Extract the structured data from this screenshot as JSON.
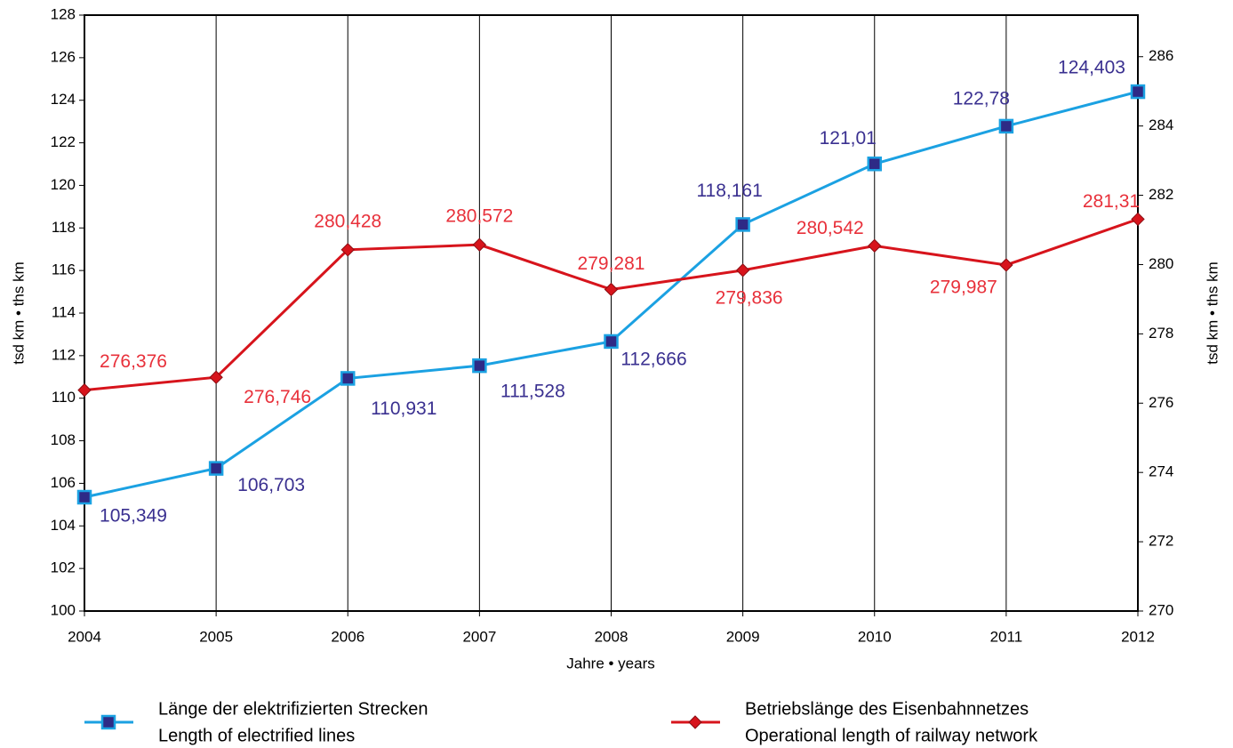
{
  "chart_data": {
    "type": "line",
    "x": [
      2004,
      2005,
      2006,
      2007,
      2008,
      2009,
      2010,
      2011,
      2012
    ],
    "xlim": [
      2004,
      2012
    ],
    "xticks": [
      2004,
      2005,
      2006,
      2007,
      2008,
      2009,
      2010,
      2011,
      2012
    ],
    "ylim": [
      100,
      128
    ],
    "yticks": [
      100,
      102,
      104,
      106,
      108,
      110,
      112,
      114,
      116,
      118,
      120,
      122,
      124,
      126,
      128
    ],
    "y2lim": [
      270,
      287.2
    ],
    "y2ticks": [
      270,
      272,
      274,
      276,
      278,
      280,
      282,
      284,
      286
    ],
    "xlabel": "Jahre • years",
    "ylabel": "tsd km • ths km",
    "y2label": "tsd km • ths km",
    "grid": "x",
    "legend": "bottom",
    "series": [
      {
        "name": [
          "Länge der elektrifizierten Strecken",
          "Length of electrified lines"
        ],
        "color": "#1ba1e2",
        "marker": "square",
        "marker_color": "#2e2a86",
        "label_color": "#3a3090",
        "values": [
          105.349,
          106.703,
          110.931,
          111.528,
          112.666,
          118.161,
          121.01,
          122.78,
          124.403
        ],
        "value_labels": [
          "105,349",
          "106,703",
          "110,931",
          "111,528",
          "112,666",
          "118,161",
          "121,01",
          "122,78",
          "124,403"
        ]
      },
      {
        "name": [
          "Betriebslänge des Eisenbahnnetzes",
          "Operational length of railway network"
        ],
        "color": "#d7141c",
        "marker": "diamond",
        "marker_color": "#d7141c",
        "label_color": "#e8303a",
        "axis": "y2",
        "values": [
          276.376,
          276.746,
          280.428,
          280.572,
          279.281,
          279.836,
          280.542,
          279.987,
          281.31
        ],
        "value_labels": [
          "276,376",
          "276,746",
          "280,428",
          "280,572",
          "279,281",
          "279,836",
          "280,542",
          "279,987",
          "281,31"
        ]
      }
    ]
  }
}
